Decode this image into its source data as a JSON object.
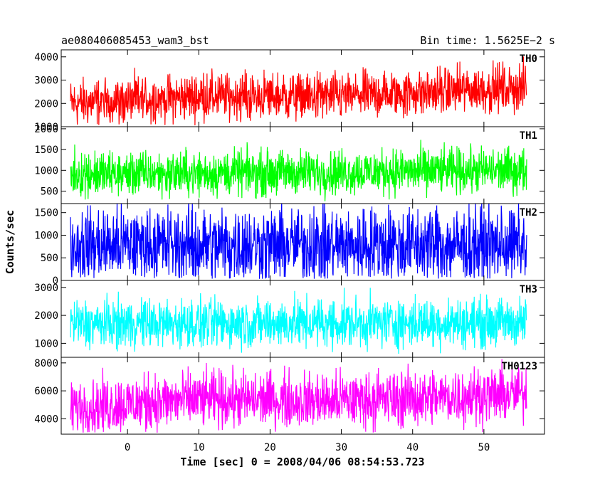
{
  "header": {
    "left_title": "ae080406085453_wam3_bst",
    "right_title": "Bin time: 1.5625E−2 s"
  },
  "axes": {
    "xlabel": "Time [sec] 0 = 2008/04/06 08:54:53.723",
    "ylabel": "Counts/sec"
  },
  "chart_data": {
    "type": "line",
    "title": "ae080406085453_wam3_bst",
    "subtitle": "Bin time: 1.5625E−2 s",
    "xlabel": "Time [sec] 0 = 2008/04/06 08:54:53.723",
    "ylabel": "Counts/sec",
    "xlim": [
      -9.3,
      58.5
    ],
    "x_ticks": [
      0,
      10,
      20,
      30,
      40,
      50
    ],
    "x_range_data": [
      -8,
      56
    ],
    "bin_time": 0.015625,
    "grid": false,
    "panels": [
      {
        "name": "TH0",
        "color": "#ff0000",
        "ylim": [
          1000,
          4300
        ],
        "y_ticks": [
          1000,
          2000,
          3000,
          4000
        ],
        "trend": [
          [
            -8,
            2000
          ],
          [
            10,
            2300
          ],
          [
            30,
            2300
          ],
          [
            56,
            2700
          ]
        ],
        "spread": 1500,
        "ymin_clip": 1050
      },
      {
        "name": "TH1",
        "color": "#00ff00",
        "ylim": [
          200,
          2050
        ],
        "y_ticks": [
          500,
          1000,
          1500,
          2000
        ],
        "trend": [
          [
            -8,
            900
          ],
          [
            56,
            1000
          ]
        ],
        "spread": 800,
        "ymin_clip": 250
      },
      {
        "name": "TH2",
        "color": "#0000ff",
        "ylim": [
          0,
          1700
        ],
        "y_ticks": [
          0,
          500,
          1000,
          1500
        ],
        "trend": [
          [
            -8,
            780
          ],
          [
            56,
            780
          ]
        ],
        "spread": 1250,
        "ymin_clip": 30
      },
      {
        "name": "TH3",
        "color": "#00ffff",
        "ylim": [
          500,
          3250
        ],
        "y_ticks": [
          1000,
          2000,
          3000
        ],
        "trend": [
          [
            -8,
            1700
          ],
          [
            56,
            1750
          ]
        ],
        "spread": 1300,
        "ymin_clip": 600
      },
      {
        "name": "TH0123",
        "color": "#ff00ff",
        "ylim": [
          2900,
          8400
        ],
        "y_ticks": [
          4000,
          6000,
          8000
        ],
        "trend": [
          [
            -8,
            4800
          ],
          [
            10,
            5400
          ],
          [
            30,
            5300
          ],
          [
            56,
            5800
          ]
        ],
        "spread": 3000,
        "ymin_clip": 3000
      }
    ]
  }
}
